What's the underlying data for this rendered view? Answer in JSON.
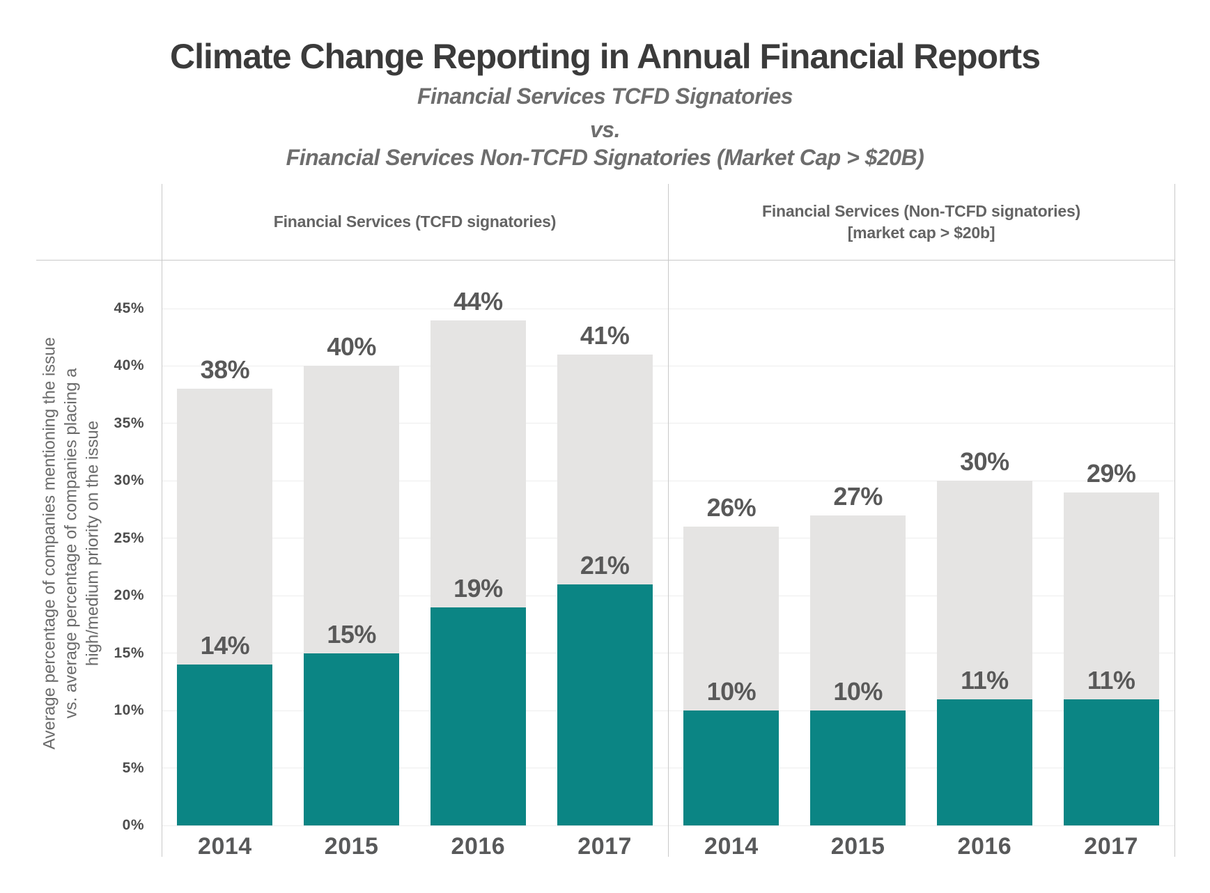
{
  "header": {
    "title": "Climate Change Reporting in Annual Financial Reports",
    "subtitle1": "Financial Services TCFD Signatories",
    "vs": "vs.",
    "subtitle2": "Financial Services Non-TCFD Signatories (Market Cap > $20B)"
  },
  "colors": {
    "total_bar": "#e5e4e3",
    "priority_bar": "#0b8584",
    "title_text": "#3b3b3b",
    "subtitle_text": "#6d6d6d",
    "label_text": "#595959",
    "border_line": "#c9c9c9",
    "gridline": "#ededed"
  },
  "chart_data": {
    "type": "bar",
    "title": "Climate Change Reporting in Annual Financial Reports",
    "subtitle": "Financial Services TCFD Signatories vs. Financial Services Non-TCFD Signatories (Market Cap > $20B)",
    "ylabel": "Average percentage of companies mentioning the issue vs. average percentage of companies placing a high/medium priority on the issue",
    "ylabel_lines": [
      "Average percentage of companies mentioning the issue",
      "vs. average percentage of companies placing a",
      "high/medium priority on the issue"
    ],
    "yticks": [
      45,
      40,
      35,
      30,
      25,
      20,
      15,
      10,
      5,
      0
    ],
    "ytick_suffix": "%",
    "ylim": [
      0,
      49
    ],
    "grid": true,
    "legend_position": "none",
    "value_label_suffix": "%",
    "panels": [
      {
        "title": "Financial Services (TCFD signatories)",
        "title_lines": [
          "Financial Services (TCFD signatories)"
        ],
        "categories": [
          "2014",
          "2015",
          "2016",
          "2017"
        ],
        "series": [
          {
            "name": "Average % of companies mentioning the issue",
            "color": "#e5e4e3",
            "values": [
              38,
              40,
              44,
              41
            ]
          },
          {
            "name": "Average % of companies placing a high/medium priority on the issue",
            "color": "#0b8584",
            "values": [
              14,
              15,
              19,
              21
            ]
          }
        ]
      },
      {
        "title": "Financial Services (Non-TCFD signatories) [market cap > $20b]",
        "title_lines": [
          "Financial Services (Non-TCFD signatories)",
          "[market cap > $20b]"
        ],
        "categories": [
          "2014",
          "2015",
          "2016",
          "2017"
        ],
        "series": [
          {
            "name": "Average % of companies mentioning the issue",
            "color": "#e5e4e3",
            "values": [
              26,
              27,
              30,
              29
            ]
          },
          {
            "name": "Average % of companies placing a high/medium priority on the issue",
            "color": "#0b8584",
            "values": [
              10,
              10,
              11,
              11
            ]
          }
        ]
      }
    ]
  }
}
